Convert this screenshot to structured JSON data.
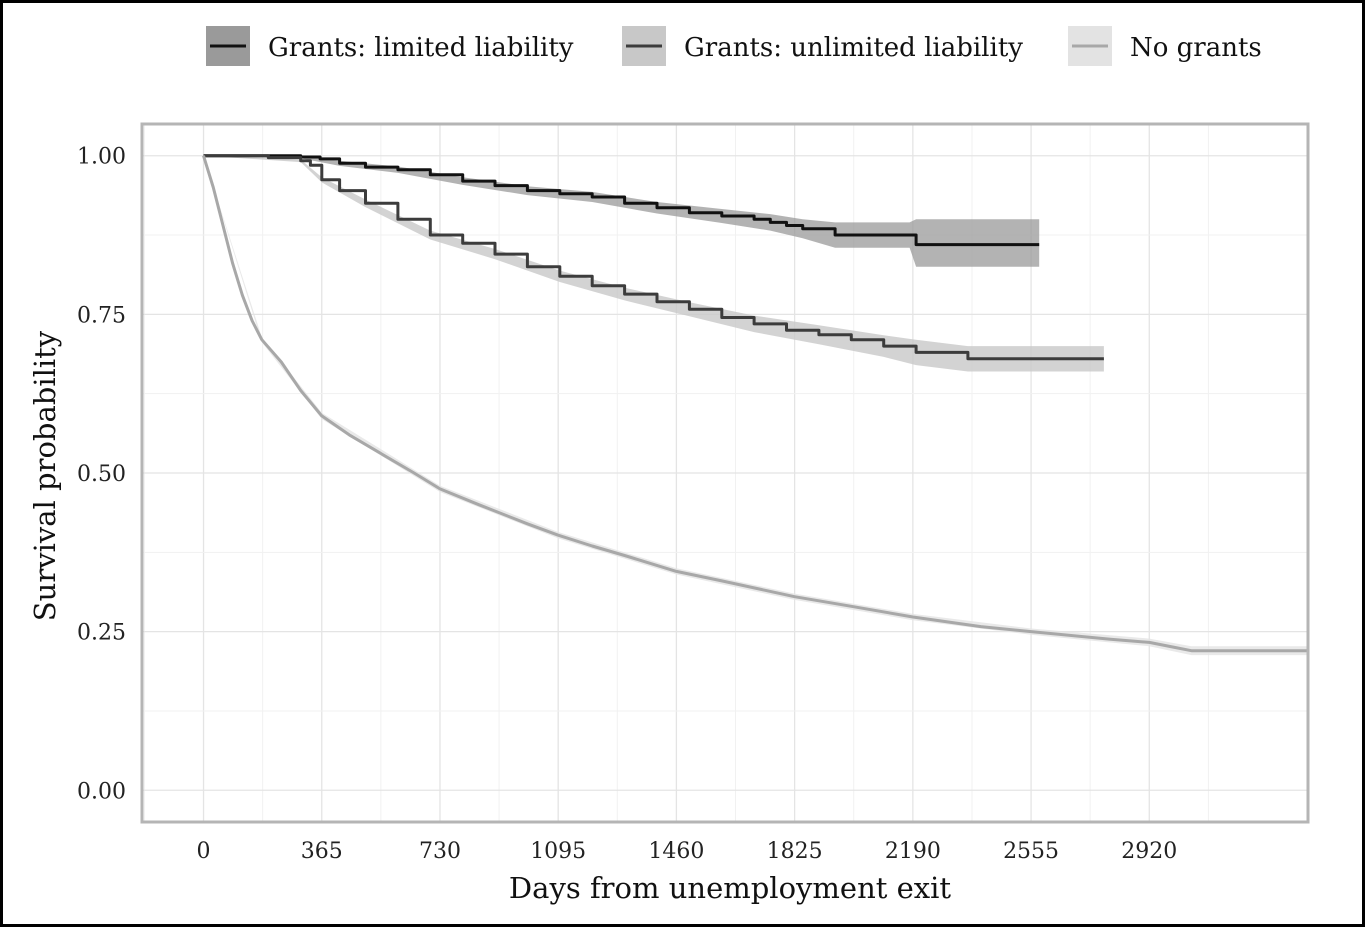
{
  "chart_data": {
    "type": "line",
    "title": "",
    "xlabel": "Days from unemployment exit",
    "ylabel": "Survival probability",
    "xlim": [
      -190,
      3410
    ],
    "ylim": [
      -0.05,
      1.05
    ],
    "x_ticks": [
      0,
      365,
      730,
      1095,
      1460,
      1825,
      2190,
      2555,
      2920
    ],
    "x_tick_labels": [
      "0",
      "365",
      "730",
      "1095",
      "1460",
      "1825",
      "2190",
      "2555",
      "2920"
    ],
    "y_ticks": [
      0.0,
      0.25,
      0.5,
      0.75,
      1.0
    ],
    "y_tick_labels": [
      "0.00",
      "0.25",
      "0.50",
      "0.75",
      "1.00"
    ],
    "grid": true,
    "legend_position": "top",
    "series": [
      {
        "name": "Grants: limited liability",
        "color": "#111111",
        "band_color": "#9a9a9a",
        "step": true,
        "points": [
          [
            0,
            1.0
          ],
          [
            150,
            1.0
          ],
          [
            300,
            0.998
          ],
          [
            360,
            0.995
          ],
          [
            420,
            0.988
          ],
          [
            500,
            0.982
          ],
          [
            600,
            0.978
          ],
          [
            700,
            0.97
          ],
          [
            800,
            0.96
          ],
          [
            900,
            0.953
          ],
          [
            1000,
            0.945
          ],
          [
            1100,
            0.94
          ],
          [
            1200,
            0.935
          ],
          [
            1300,
            0.925
          ],
          [
            1400,
            0.918
          ],
          [
            1500,
            0.91
          ],
          [
            1600,
            0.905
          ],
          [
            1700,
            0.9
          ],
          [
            1750,
            0.895
          ],
          [
            1800,
            0.89
          ],
          [
            1850,
            0.885
          ],
          [
            1950,
            0.875
          ],
          [
            2100,
            0.875
          ],
          [
            2200,
            0.86
          ],
          [
            2580,
            0.86
          ]
        ],
        "band_points": [
          [
            0,
            1.0,
            1.0
          ],
          [
            300,
            0.996,
            1.0
          ],
          [
            420,
            0.984,
            0.992
          ],
          [
            600,
            0.973,
            0.983
          ],
          [
            800,
            0.954,
            0.966
          ],
          [
            1000,
            0.938,
            0.952
          ],
          [
            1200,
            0.927,
            0.943
          ],
          [
            1400,
            0.909,
            0.927
          ],
          [
            1600,
            0.894,
            0.916
          ],
          [
            1750,
            0.882,
            0.908
          ],
          [
            1850,
            0.87,
            0.9
          ],
          [
            1950,
            0.855,
            0.895
          ],
          [
            2180,
            0.855,
            0.895
          ],
          [
            2200,
            0.825,
            0.9
          ],
          [
            2580,
            0.825,
            0.9
          ]
        ]
      },
      {
        "name": "Grants: unlimited liability",
        "color": "#3c3c3c",
        "band_color": "#c8c8c8",
        "step": true,
        "points": [
          [
            0,
            1.0
          ],
          [
            200,
            0.997
          ],
          [
            300,
            0.992
          ],
          [
            330,
            0.985
          ],
          [
            365,
            0.962
          ],
          [
            420,
            0.945
          ],
          [
            500,
            0.925
          ],
          [
            600,
            0.9
          ],
          [
            700,
            0.875
          ],
          [
            800,
            0.862
          ],
          [
            900,
            0.845
          ],
          [
            1000,
            0.825
          ],
          [
            1100,
            0.81
          ],
          [
            1200,
            0.795
          ],
          [
            1300,
            0.782
          ],
          [
            1400,
            0.77
          ],
          [
            1500,
            0.758
          ],
          [
            1600,
            0.745
          ],
          [
            1700,
            0.735
          ],
          [
            1800,
            0.725
          ],
          [
            1900,
            0.718
          ],
          [
            2000,
            0.71
          ],
          [
            2100,
            0.7
          ],
          [
            2200,
            0.69
          ],
          [
            2360,
            0.68
          ],
          [
            2780,
            0.68
          ]
        ],
        "band_points": [
          [
            0,
            1.0,
            1.0
          ],
          [
            300,
            0.99,
            0.994
          ],
          [
            365,
            0.958,
            0.966
          ],
          [
            500,
            0.919,
            0.931
          ],
          [
            700,
            0.868,
            0.882
          ],
          [
            900,
            0.837,
            0.853
          ],
          [
            1100,
            0.801,
            0.819
          ],
          [
            1300,
            0.772,
            0.792
          ],
          [
            1500,
            0.747,
            0.769
          ],
          [
            1700,
            0.722,
            0.748
          ],
          [
            1900,
            0.703,
            0.733
          ],
          [
            2100,
            0.683,
            0.717
          ],
          [
            2200,
            0.67,
            0.71
          ],
          [
            2360,
            0.66,
            0.7
          ],
          [
            2780,
            0.66,
            0.7
          ]
        ]
      },
      {
        "name": "No grants",
        "color": "#a8a8a8",
        "band_color": "#e3e3e3",
        "step": false,
        "points": [
          [
            0,
            1.0
          ],
          [
            30,
            0.95
          ],
          [
            60,
            0.89
          ],
          [
            90,
            0.83
          ],
          [
            120,
            0.78
          ],
          [
            150,
            0.74
          ],
          [
            180,
            0.71
          ],
          [
            240,
            0.675
          ],
          [
            300,
            0.63
          ],
          [
            365,
            0.59
          ],
          [
            450,
            0.56
          ],
          [
            550,
            0.53
          ],
          [
            650,
            0.5
          ],
          [
            730,
            0.475
          ],
          [
            850,
            0.45
          ],
          [
            1000,
            0.42
          ],
          [
            1095,
            0.402
          ],
          [
            1200,
            0.385
          ],
          [
            1300,
            0.37
          ],
          [
            1460,
            0.345
          ],
          [
            1600,
            0.33
          ],
          [
            1825,
            0.305
          ],
          [
            2000,
            0.29
          ],
          [
            2190,
            0.273
          ],
          [
            2400,
            0.258
          ],
          [
            2555,
            0.25
          ],
          [
            2800,
            0.238
          ],
          [
            2920,
            0.233
          ],
          [
            3000,
            0.225
          ],
          [
            3050,
            0.22
          ],
          [
            3410,
            0.22
          ]
        ],
        "band_points": [
          [
            0,
            1.0,
            1.0
          ],
          [
            180,
            0.706,
            0.714
          ],
          [
            365,
            0.585,
            0.595
          ],
          [
            730,
            0.47,
            0.48
          ],
          [
            1095,
            0.397,
            0.407
          ],
          [
            1460,
            0.34,
            0.35
          ],
          [
            1825,
            0.3,
            0.31
          ],
          [
            2190,
            0.268,
            0.278
          ],
          [
            2555,
            0.245,
            0.255
          ],
          [
            2920,
            0.227,
            0.239
          ],
          [
            3050,
            0.213,
            0.227
          ],
          [
            3410,
            0.213,
            0.227
          ]
        ]
      }
    ]
  }
}
